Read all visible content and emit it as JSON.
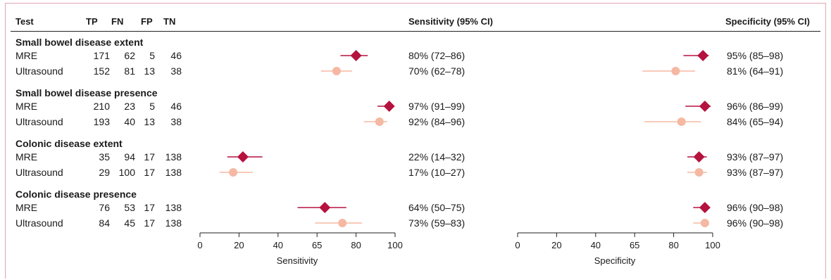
{
  "headers": {
    "test": "Test",
    "tp": "TP",
    "fn": "FN",
    "fp": "FP",
    "tn": "TN",
    "sensitivity": "Sensitivity (95% CI)",
    "specificity": "Specificity (95% CI)"
  },
  "colors": {
    "mre": "#b5123e",
    "ultrasound": "#f5b8a2",
    "border": "#e2a4b4"
  },
  "groups": [
    {
      "title": "Small bowel disease extent",
      "rows": [
        {
          "test": "MRE",
          "tp": "171",
          "fn": "62",
          "fp": "5",
          "tn": "46",
          "sens_text": "80% (72–86)",
          "spec_text": "95% (85–98)"
        },
        {
          "test": "Ultrasound",
          "tp": "152",
          "fn": "81",
          "fp": "13",
          "tn": "38",
          "sens_text": "70% (62–78)",
          "spec_text": "81% (64–91)"
        }
      ]
    },
    {
      "title": "Small bowel disease presence",
      "rows": [
        {
          "test": "MRE",
          "tp": "210",
          "fn": "23",
          "fp": "5",
          "tn": "46",
          "sens_text": "97% (91–99)",
          "spec_text": "96% (86–99)"
        },
        {
          "test": "Ultrasound",
          "tp": "193",
          "fn": "40",
          "fp": "13",
          "tn": "38",
          "sens_text": "92% (84–96)",
          "spec_text": "84% (65–94)"
        }
      ]
    },
    {
      "title": "Colonic disease extent",
      "rows": [
        {
          "test": "MRE",
          "tp": "35",
          "fn": "94",
          "fp": "17",
          "tn": "138",
          "sens_text": "22% (14–32)",
          "spec_text": "93% (87–97)"
        },
        {
          "test": "Ultrasound",
          "tp": "29",
          "fn": "100",
          "fp": "17",
          "tn": "138",
          "sens_text": "17% (10–27)",
          "spec_text": "93% (87–97)"
        }
      ]
    },
    {
      "title": "Colonic disease presence",
      "rows": [
        {
          "test": "MRE",
          "tp": "76",
          "fn": "53",
          "fp": "17",
          "tn": "138",
          "sens_text": "64% (50–75)",
          "spec_text": "96% (90–98)"
        },
        {
          "test": "Ultrasound",
          "tp": "84",
          "fn": "45",
          "fp": "17",
          "tn": "138",
          "sens_text": "73% (59–83)",
          "spec_text": "96% (90–98)"
        }
      ]
    }
  ],
  "chart_data": [
    {
      "type": "scatter",
      "xlabel": "Sensitivity",
      "xlim": [
        0,
        100
      ],
      "xticks": [
        "0",
        "20",
        "40",
        "65",
        "80",
        "100"
      ],
      "series": [
        {
          "name": "MRE",
          "marker": "diamond",
          "values": [
            80,
            97,
            22,
            64
          ],
          "ci_low": [
            72,
            91,
            14,
            50
          ],
          "ci_high": [
            86,
            99,
            32,
            75
          ]
        },
        {
          "name": "Ultrasound",
          "marker": "circle",
          "values": [
            70,
            92,
            17,
            73
          ],
          "ci_low": [
            62,
            84,
            10,
            59
          ],
          "ci_high": [
            78,
            96,
            27,
            83
          ]
        }
      ]
    },
    {
      "type": "scatter",
      "xlabel": "Specificity",
      "xlim": [
        0,
        100
      ],
      "xticks": [
        "0",
        "20",
        "40",
        "65",
        "80",
        "100"
      ],
      "series": [
        {
          "name": "MRE",
          "marker": "diamond",
          "values": [
            95,
            96,
            93,
            96
          ],
          "ci_low": [
            85,
            86,
            87,
            90
          ],
          "ci_high": [
            98,
            99,
            97,
            98
          ]
        },
        {
          "name": "Ultrasound",
          "marker": "circle",
          "values": [
            81,
            84,
            93,
            96
          ],
          "ci_low": [
            64,
            65,
            87,
            90
          ],
          "ci_high": [
            91,
            94,
            97,
            98
          ]
        }
      ]
    }
  ]
}
